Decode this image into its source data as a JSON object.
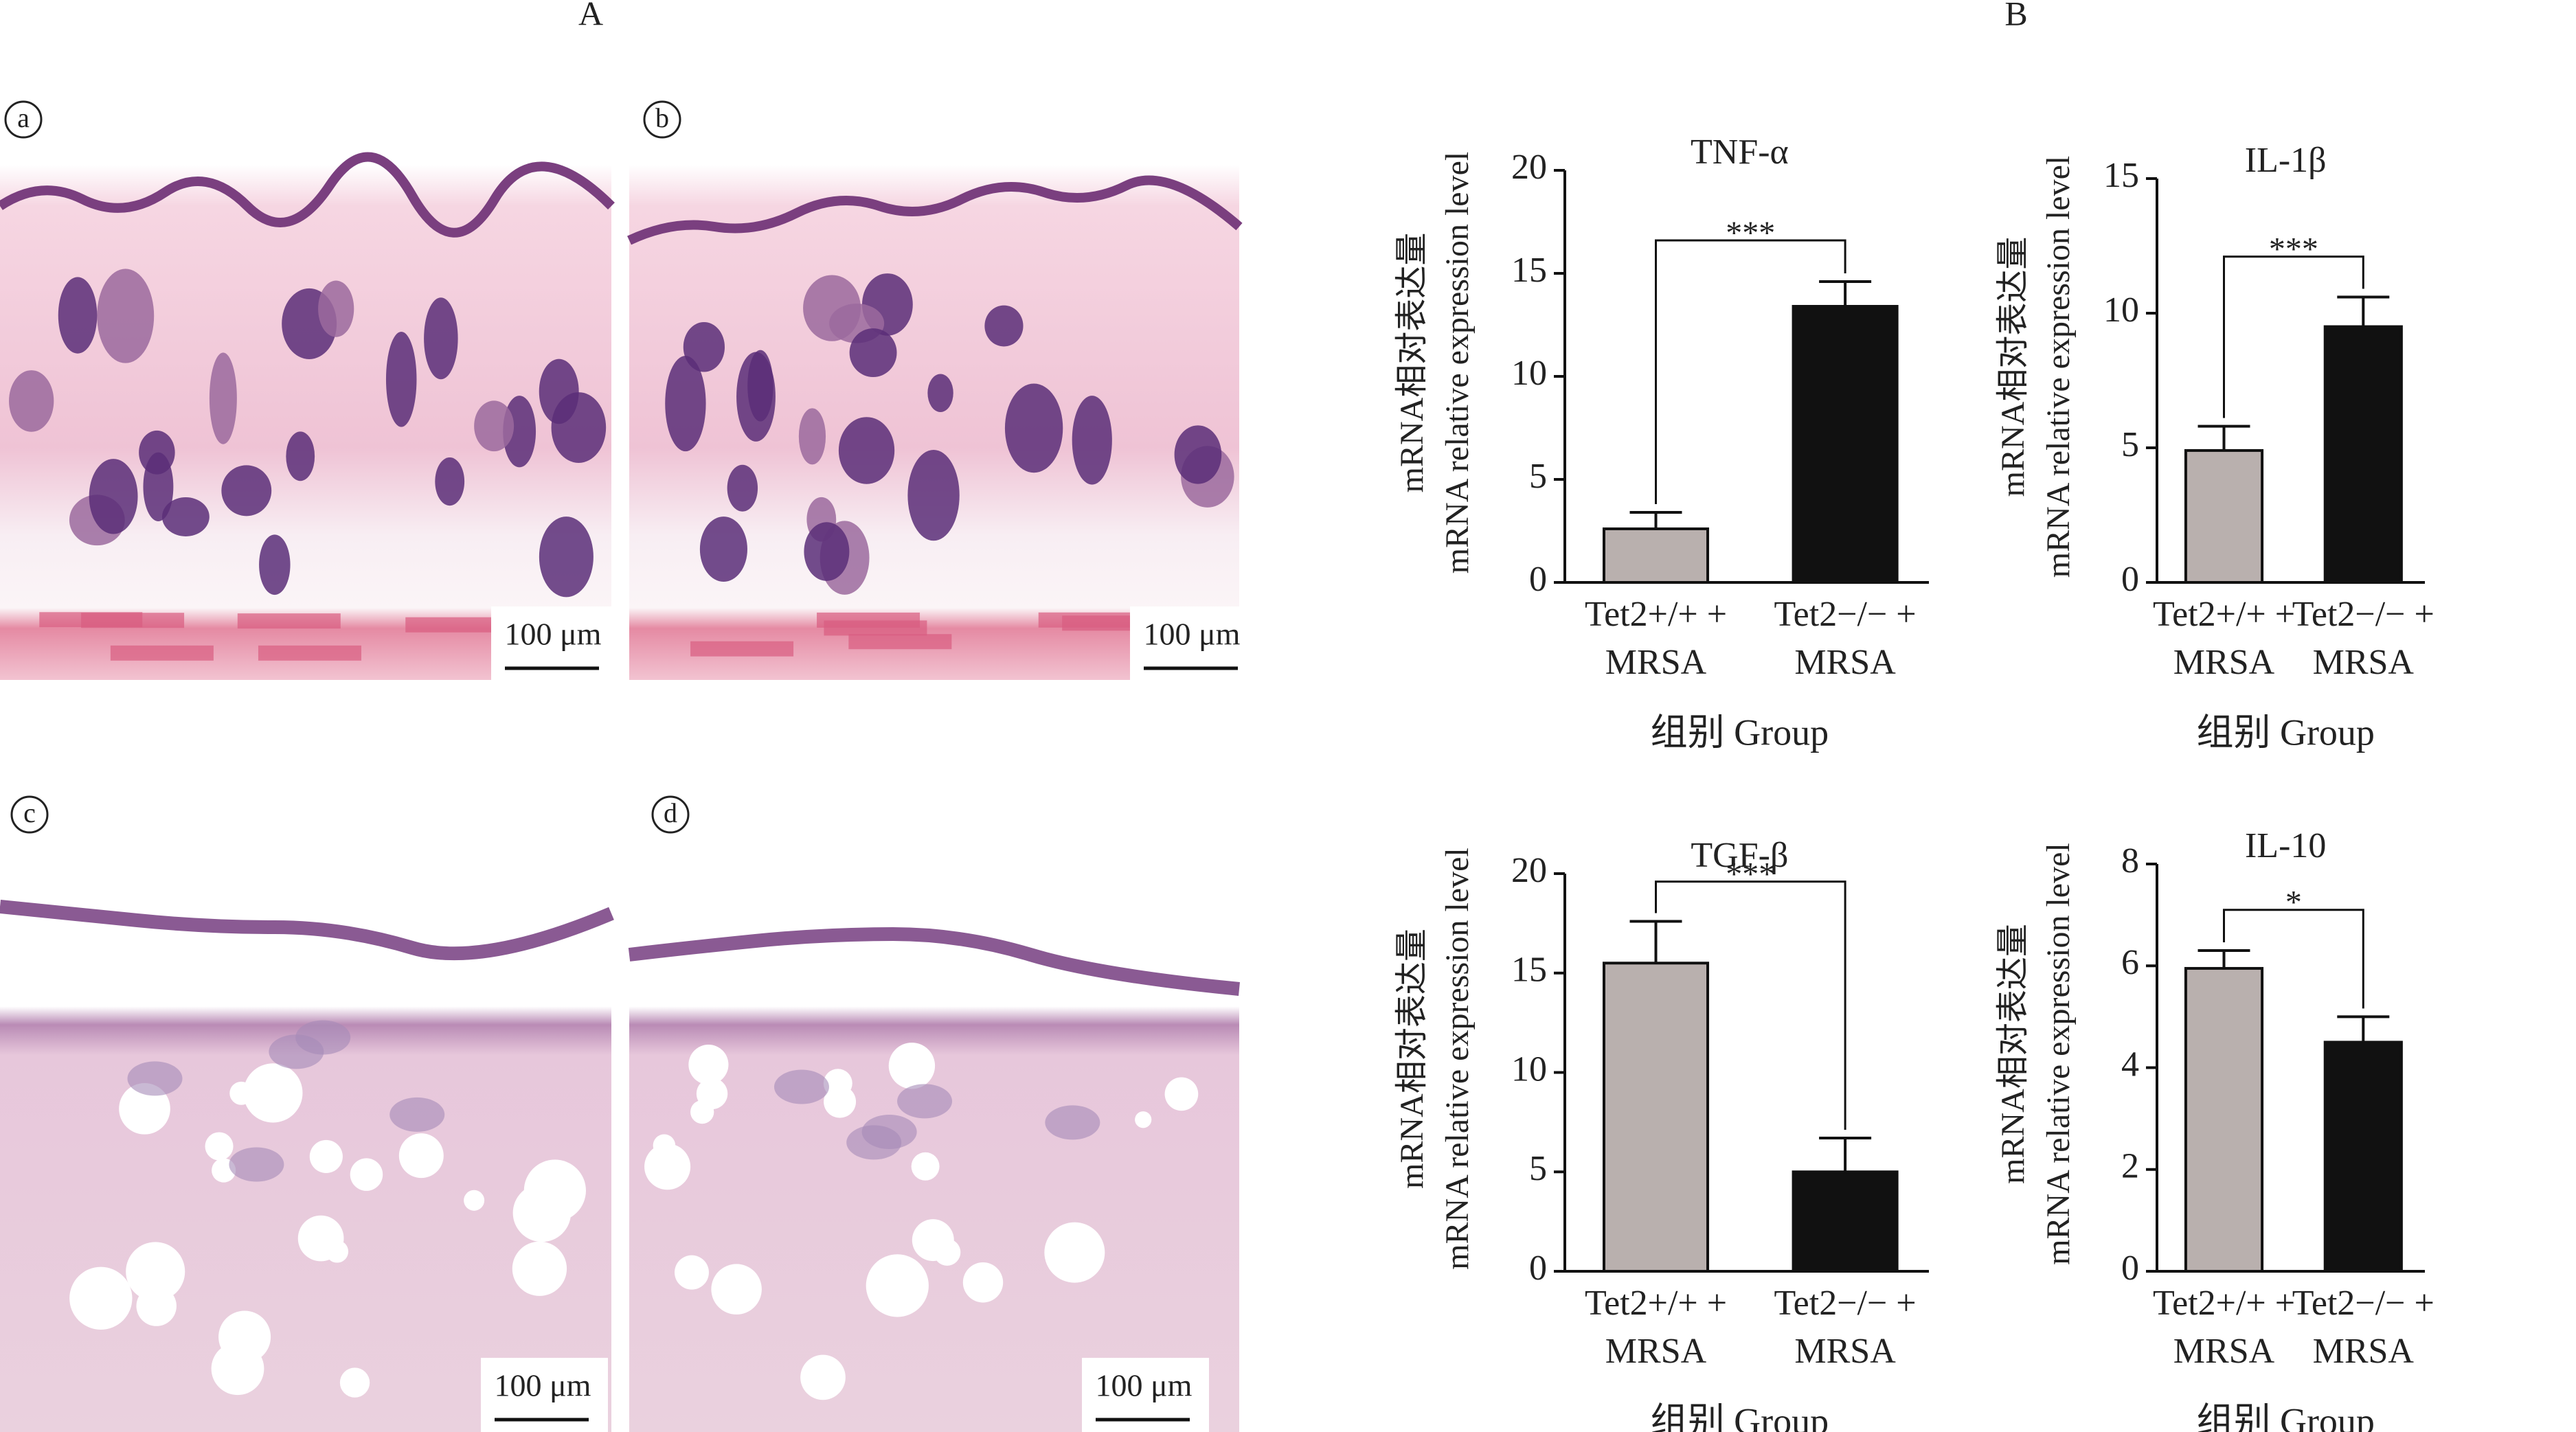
{
  "figure": {
    "panel_headings": [
      "A",
      "B"
    ],
    "panels": [
      "a",
      "b",
      "c",
      "d"
    ],
    "scale_bar": "100 μm"
  },
  "chart_data": [
    {
      "type": "bar",
      "title": "TNF-α",
      "y_label": [
        "mRNA相对表达量",
        "mRNA relative expression level"
      ],
      "x_label": "组别 Group",
      "categories": [
        "Tet2+/+ +\nMRSA",
        "Tet2−/− +\nMRSA"
      ],
      "values": [
        2.6,
        13.4
      ],
      "errors": [
        0.8,
        1.2
      ],
      "colors": [
        "#b9b0ae",
        "#111111"
      ],
      "ylim": [
        0,
        20
      ],
      "yticks": [
        0,
        5,
        10,
        15,
        20
      ],
      "significance": "***"
    },
    {
      "type": "bar",
      "title": "IL-1β",
      "y_label": [
        "mRNA相对表达量",
        "mRNA relative expression level"
      ],
      "x_label": "组别 Group",
      "categories": [
        "Tet2+/+ +\nMRSA",
        "Tet2−/− +\nMRSA"
      ],
      "values": [
        4.9,
        9.5
      ],
      "errors": [
        0.9,
        1.1
      ],
      "colors": [
        "#b9b0ae",
        "#111111"
      ],
      "ylim": [
        0,
        15
      ],
      "yticks": [
        0,
        5,
        10,
        15
      ],
      "significance": "***"
    },
    {
      "type": "bar",
      "title": "TGF-β",
      "y_label": [
        "mRNA相对表达量",
        "mRNA relative expression level"
      ],
      "x_label": "组别 Group",
      "categories": [
        "Tet2+/+ +\nMRSA",
        "Tet2−/− +\nMRSA"
      ],
      "values": [
        15.5,
        5.0
      ],
      "errors": [
        2.1,
        1.7
      ],
      "colors": [
        "#b9b0ae",
        "#111111"
      ],
      "ylim": [
        0,
        20
      ],
      "yticks": [
        0,
        5,
        10,
        15,
        20
      ],
      "significance": "***"
    },
    {
      "type": "bar",
      "title": "IL-10",
      "y_label": [
        "mRNA相对表达量",
        "mRNA relative expression level"
      ],
      "x_label": "组别 Group",
      "categories": [
        "Tet2+/+ +\nMRSA",
        "Tet2−/− +\nMRSA"
      ],
      "values": [
        5.95,
        4.5
      ],
      "errors": [
        0.35,
        0.5
      ],
      "colors": [
        "#b9b0ae",
        "#111111"
      ],
      "ylim": [
        0,
        8
      ],
      "yticks": [
        0,
        2,
        4,
        6,
        8
      ],
      "significance": "*"
    }
  ]
}
